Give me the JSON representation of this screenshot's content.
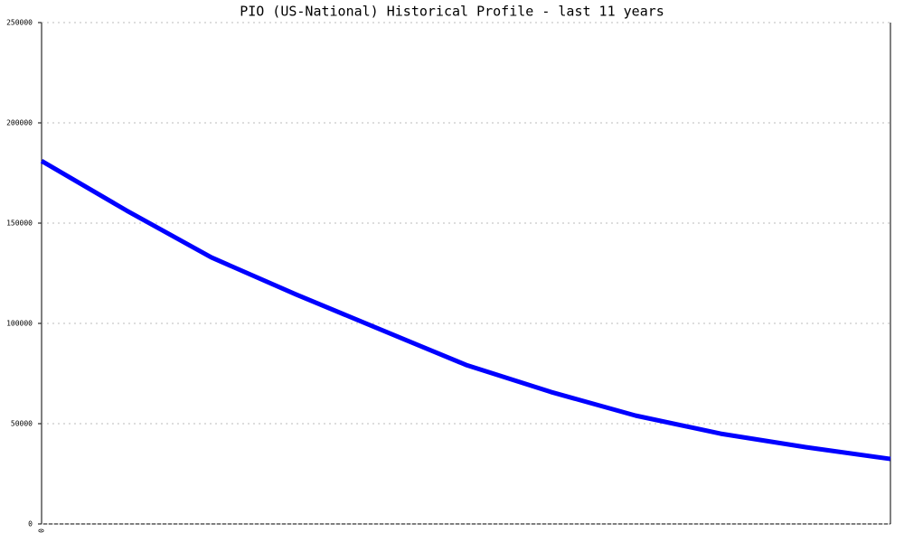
{
  "chart_data": {
    "type": "line",
    "title": "PIO (US-National) Historical Profile - last 11 years",
    "categories": [
      "0",
      null,
      null,
      null,
      null,
      null,
      null,
      null,
      null,
      null,
      null
    ],
    "series": [
      {
        "name": "PIO",
        "color": "#0000ff",
        "values": [
          181000,
          156300,
          132900,
          114400,
          96800,
          79300,
          65800,
          54000,
          45000,
          38300,
          32400
        ]
      }
    ],
    "ylim": [
      0,
      250000
    ],
    "yticks": [
      0,
      50000,
      100000,
      150000,
      200000,
      250000
    ],
    "grid": true
  }
}
